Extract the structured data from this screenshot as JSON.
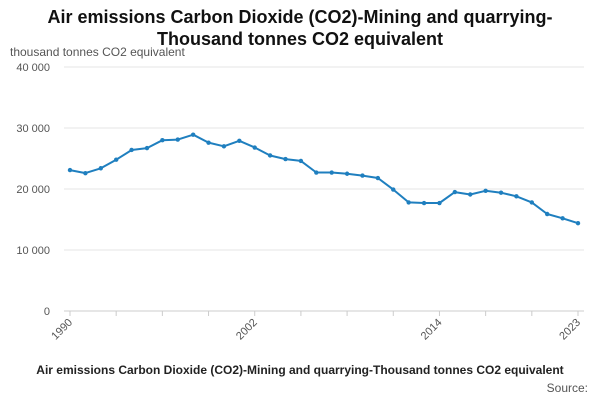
{
  "chart_data": {
    "type": "line",
    "title_line1": "Air emissions Carbon Dioxide (CO2)-Mining and quarrying-",
    "title_line2": "Thousand tonnes CO2 equivalent",
    "ylabel": "thousand tonnes CO2 equivalent",
    "footer_title": "Air emissions Carbon Dioxide (CO2)-Mining and quarrying-Thousand tonnes CO2 equivalent",
    "source_label": "Source:",
    "ylim": [
      0,
      40000
    ],
    "y_ticks": [
      {
        "value": 0,
        "label": "0"
      },
      {
        "value": 10000,
        "label": "10 000"
      },
      {
        "value": 20000,
        "label": "20 000"
      },
      {
        "value": 30000,
        "label": "30 000"
      },
      {
        "value": 40000,
        "label": "40 000"
      }
    ],
    "x_tick_labels": [
      "1990",
      "2002",
      "2014",
      "2023"
    ],
    "grid": true,
    "line_color": "#1f7fbf",
    "series": [
      {
        "x": [
          1990,
          1991,
          1992,
          1993,
          1994,
          1995,
          1996,
          1997,
          1998,
          1999,
          2000,
          2001,
          2002,
          2003,
          2004,
          2005,
          2006,
          2007,
          2008,
          2009,
          2010,
          2011,
          2012,
          2013,
          2014,
          2015,
          2016,
          2017,
          2018,
          2019,
          2020,
          2021,
          2022,
          2023
        ],
        "values": [
          23100,
          22600,
          23400,
          24800,
          26400,
          26700,
          28000,
          28100,
          28900,
          27600,
          27000,
          27900,
          26800,
          25500,
          24900,
          24600,
          22700,
          22700,
          22500,
          22200,
          21800,
          19900,
          17800,
          17700,
          17700,
          19500,
          19100,
          19700,
          19400,
          18800,
          17800,
          15900,
          15200,
          14400
        ]
      }
    ]
  }
}
